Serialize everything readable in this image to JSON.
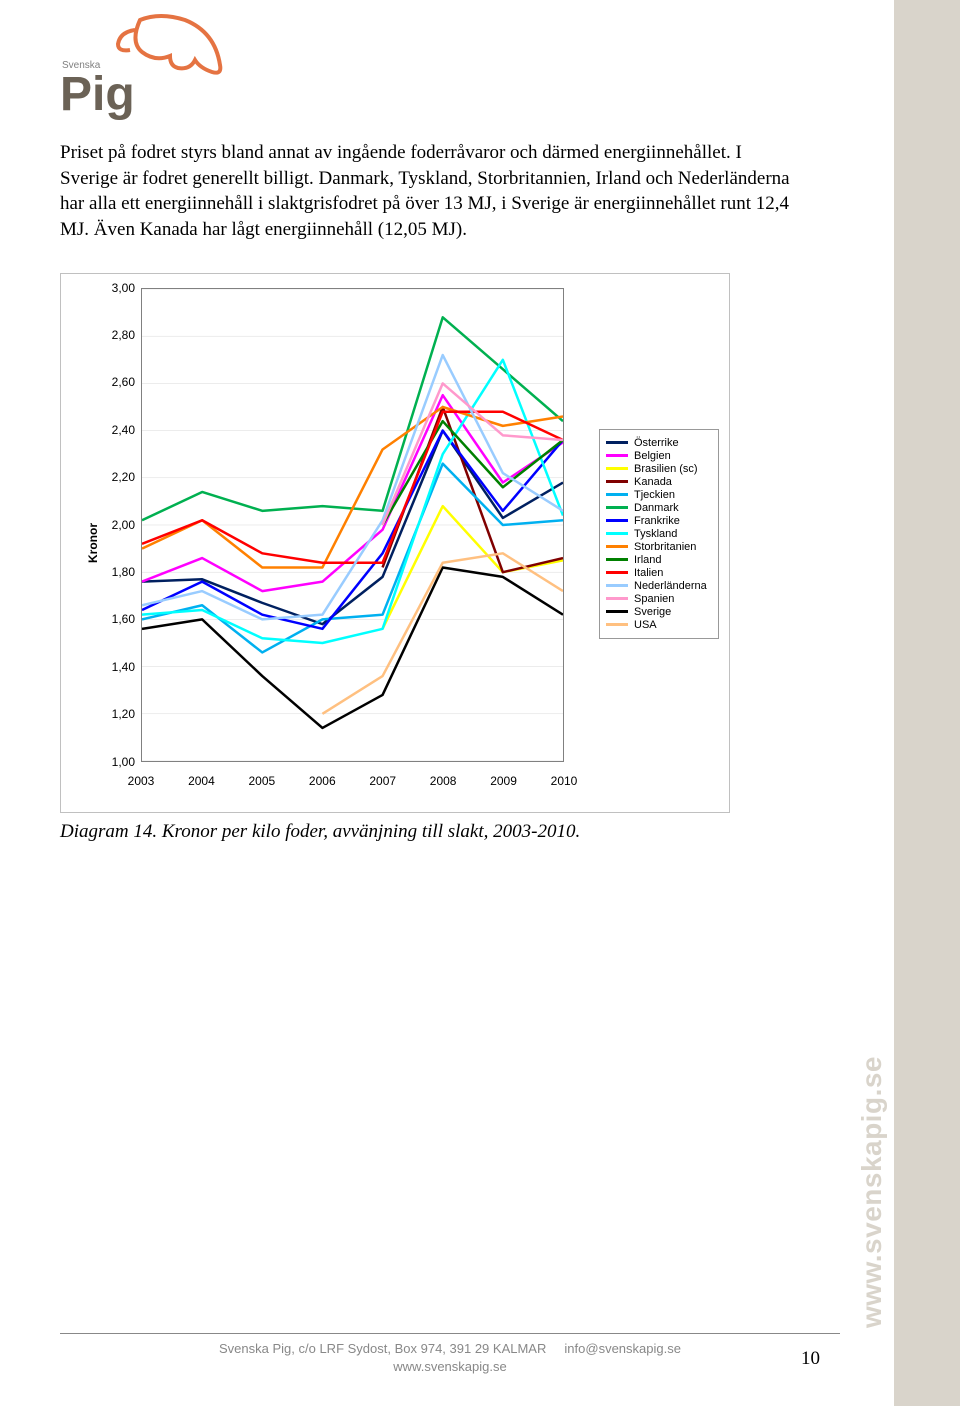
{
  "logo": {
    "brand_small": "Svenska",
    "brand_big": "Pig"
  },
  "paragraphs": {
    "p1": "Priset på fodret styrs bland annat av ingående foderråvaror och därmed energiinnehållet. I Sverige är fodret generellt billigt. Danmark, Tyskland, Storbritannien, Irland och Nederländerna har alla ett energiinnehåll i slaktgrisfodret på över 13 MJ, i Sverige är energiinnehållet runt 12,4 MJ. Även Kanada har lågt energiinnehåll (12,05 MJ)."
  },
  "chart": {
    "type": "line",
    "ylabel": "Kronor",
    "ylim": [
      1.0,
      3.0
    ],
    "ytick_step": 0.2,
    "y_ticks": [
      "1,00",
      "1,20",
      "1,40",
      "1,60",
      "1,80",
      "2,00",
      "2,20",
      "2,40",
      "2,60",
      "2,80",
      "3,00"
    ],
    "x_labels": [
      "2003",
      "2004",
      "2005",
      "2006",
      "2007",
      "2008",
      "2009",
      "2010"
    ],
    "x_count": 8,
    "grid_color": "#bfbfbf",
    "border_color": "#808080",
    "background_color": "#ffffff",
    "line_width": 2.5,
    "series": [
      {
        "name": "Österrike",
        "color": "#002060",
        "values": [
          1.76,
          1.77,
          1.67,
          1.58,
          1.78,
          2.4,
          2.03,
          2.18
        ]
      },
      {
        "name": "Belgien",
        "color": "#ff00ff",
        "values": [
          1.76,
          1.86,
          1.72,
          1.76,
          1.98,
          2.55,
          2.18,
          2.35
        ]
      },
      {
        "name": "Brasilien (sc)",
        "color": "#ffff00",
        "values": [
          null,
          null,
          null,
          null,
          1.56,
          2.08,
          1.8,
          1.85
        ]
      },
      {
        "name": "Kanada",
        "color": "#800000",
        "values": [
          null,
          null,
          null,
          null,
          1.82,
          2.5,
          1.8,
          1.86
        ]
      },
      {
        "name": "Tjeckien",
        "color": "#00b0f0",
        "values": [
          1.6,
          1.66,
          1.46,
          1.6,
          1.62,
          2.26,
          2.0,
          2.02
        ]
      },
      {
        "name": "Danmark",
        "color": "#00b050",
        "values": [
          2.02,
          2.14,
          2.06,
          2.08,
          2.06,
          2.88,
          2.66,
          2.44
        ]
      },
      {
        "name": "Frankrike",
        "color": "#0000ff",
        "values": [
          1.64,
          1.76,
          1.62,
          1.56,
          1.88,
          2.4,
          2.06,
          2.36
        ]
      },
      {
        "name": "Tyskland",
        "color": "#00ffff",
        "values": [
          1.62,
          1.64,
          1.52,
          1.5,
          1.56,
          2.3,
          2.7,
          2.04
        ]
      },
      {
        "name": "Storbritanien",
        "color": "#ff8000",
        "values": [
          1.9,
          2.02,
          1.82,
          1.82,
          2.32,
          2.5,
          2.42,
          2.46
        ]
      },
      {
        "name": "Irland",
        "color": "#008000",
        "values": [
          null,
          null,
          null,
          null,
          2.0,
          2.44,
          2.16,
          2.36
        ]
      },
      {
        "name": "Italien",
        "color": "#ff0000",
        "values": [
          1.92,
          2.02,
          1.88,
          1.84,
          1.84,
          2.48,
          2.48,
          2.36
        ]
      },
      {
        "name": "Nederländerna",
        "color": "#99ccff",
        "values": [
          1.66,
          1.72,
          1.6,
          1.62,
          2.02,
          2.72,
          2.22,
          2.06
        ]
      },
      {
        "name": "Spanien",
        "color": "#ff99cc",
        "values": [
          null,
          null,
          null,
          null,
          2.0,
          2.6,
          2.38,
          2.36
        ]
      },
      {
        "name": "Sverige",
        "color": "#000000",
        "values": [
          1.56,
          1.6,
          1.36,
          1.14,
          1.28,
          1.82,
          1.78,
          1.62
        ]
      },
      {
        "name": "USA",
        "color": "#ffc080",
        "values": [
          null,
          null,
          null,
          1.2,
          1.36,
          1.84,
          1.88,
          1.72
        ]
      }
    ]
  },
  "caption": "Diagram 14. Kronor per kilo foder, avvänjning till slakt, 2003-2010.",
  "footer": {
    "line1_left": "Svenska Pig, c/o LRF Sydost, Box 974, 391 29 KALMAR",
    "line1_right": "info@svenskapig.se",
    "line2": "www.svenskapig.se"
  },
  "right_text": "www.svenskapig.se",
  "page_number": "10"
}
